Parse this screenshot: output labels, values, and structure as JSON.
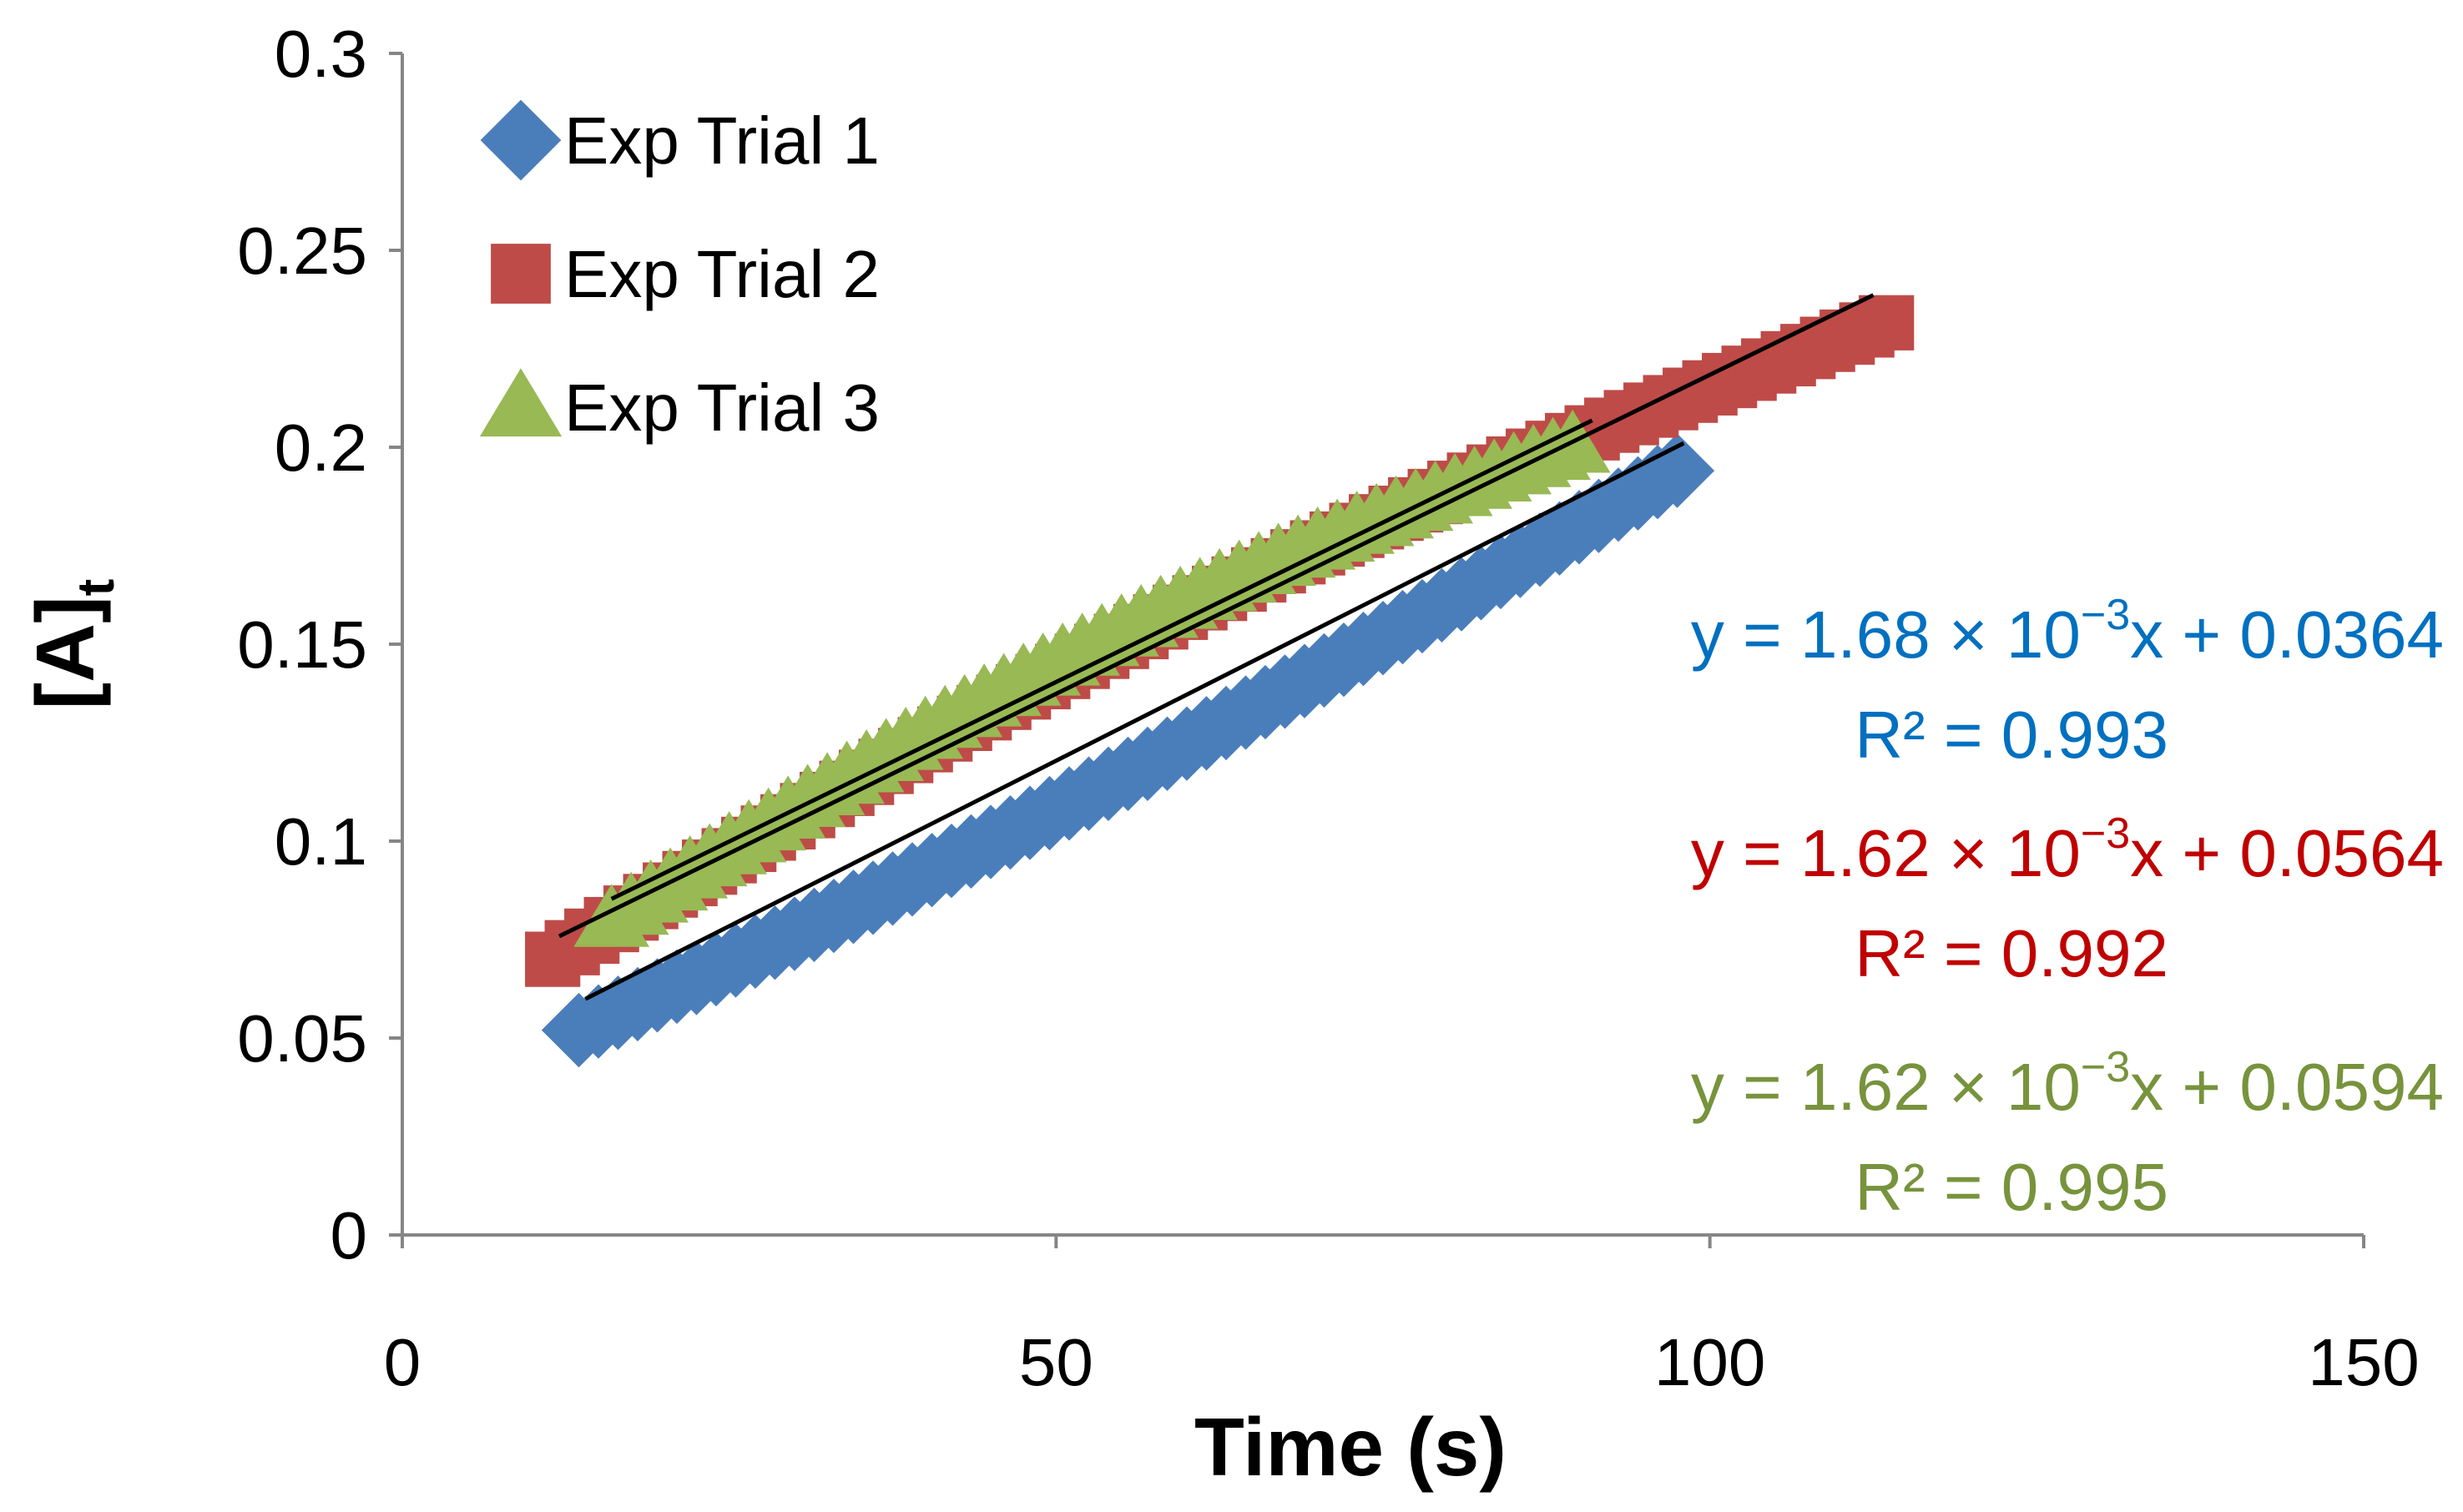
{
  "chart_data": {
    "type": "scatter",
    "title": "",
    "xlabel": "Time (s)",
    "ylabel_main": "[A]",
    "ylabel_sub": "t",
    "xlim": [
      0,
      150
    ],
    "ylim": [
      0,
      0.3
    ],
    "xticks": [
      "0",
      "50",
      "100",
      "150"
    ],
    "xtick_values": [
      0,
      50,
      100,
      150
    ],
    "yticks": [
      "0",
      "0.05",
      "0.1",
      "0.15",
      "0.2",
      "0.25",
      "0.3"
    ],
    "ytick_values": [
      0,
      0.05,
      0.1,
      0.15,
      0.2,
      0.25,
      0.3
    ],
    "grid": false,
    "legend_position": "top-left",
    "series": [
      {
        "name": "Exp Trial 1",
        "marker": "diamond",
        "color": "#4a7ebb",
        "x_start": 13.5,
        "x_end": 98,
        "x_step": 1.5,
        "y_start": 0.052,
        "y_end": 0.195,
        "curve": -0.006,
        "trendline": {
          "x": [
            14,
            98
          ],
          "slope": 0.00168,
          "intercept": 0.0364
        },
        "equation": {
          "prefix": "y = 1.68 × 10",
          "exponent": "−3",
          "suffix": "x + 0.0364",
          "r2": "R² = 0.993"
        },
        "eq_color": "#0070c0"
      },
      {
        "name": "Exp Trial 2",
        "marker": "square",
        "color": "#be4b48",
        "x_start": 11.5,
        "x_end": 113,
        "x_step": 1.5,
        "y_start": 0.07,
        "y_end": 0.231,
        "curve": 0.012,
        "trendline": {
          "x": [
            12,
            112.5
          ],
          "slope": 0.00162,
          "intercept": 0.0564
        },
        "equation": {
          "prefix": "y = 1.62 × 10",
          "exponent": "−3",
          "suffix": "x + 0.0564",
          "r2": "R² = 0.992"
        },
        "eq_color": "#c00000"
      },
      {
        "name": "Exp Trial 3",
        "marker": "triangle",
        "color": "#98b954",
        "x_start": 16,
        "x_end": 90,
        "x_step": 1.5,
        "y_start": 0.08,
        "y_end": 0.201,
        "curve": 0.01,
        "trendline": {
          "x": [
            16,
            91
          ],
          "slope": 0.00162,
          "intercept": 0.0594
        },
        "equation": {
          "prefix": "y = 1.62 × 10",
          "exponent": "−3",
          "suffix": "x + 0.0594",
          "r2": "R² = 0.995"
        },
        "eq_color": "#77933c"
      }
    ]
  }
}
